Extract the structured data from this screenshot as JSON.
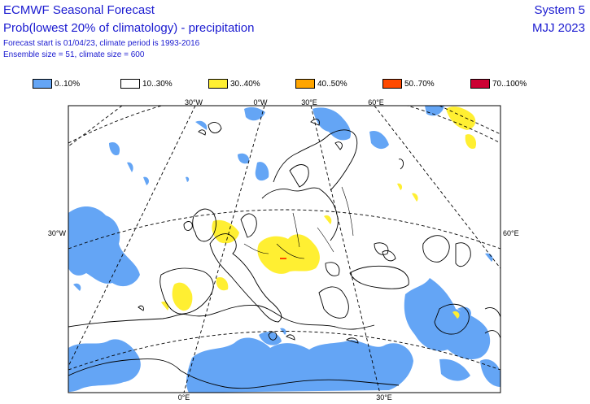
{
  "header": {
    "title": "ECMWF Seasonal Forecast",
    "subtitle": "Prob(lowest 20% of climatology) - precipitation",
    "forecast_info": "Forecast start is 01/04/23, climate period is 1993-2016",
    "ensemble_info": "Ensemble size = 51, climate size = 600",
    "system": "System 5",
    "period": "MJJ 2023"
  },
  "legend": [
    {
      "label": "0..10%",
      "color": "#64a5f5"
    },
    {
      "label": "10..30%",
      "color": "#ffffff"
    },
    {
      "label": "30..40%",
      "color": "#ffef32"
    },
    {
      "label": "40..50%",
      "color": "#ffa500"
    },
    {
      "label": "50..70%",
      "color": "#ff4a00"
    },
    {
      "label": "70..100%",
      "color": "#cc0033"
    }
  ],
  "map": {
    "top_labels": [
      "30°W",
      "0°W",
      "30°E",
      "60°E"
    ],
    "bottom_labels": [
      "0°E",
      "30°E"
    ],
    "left_label": "30°W",
    "right_label": "60°E"
  }
}
